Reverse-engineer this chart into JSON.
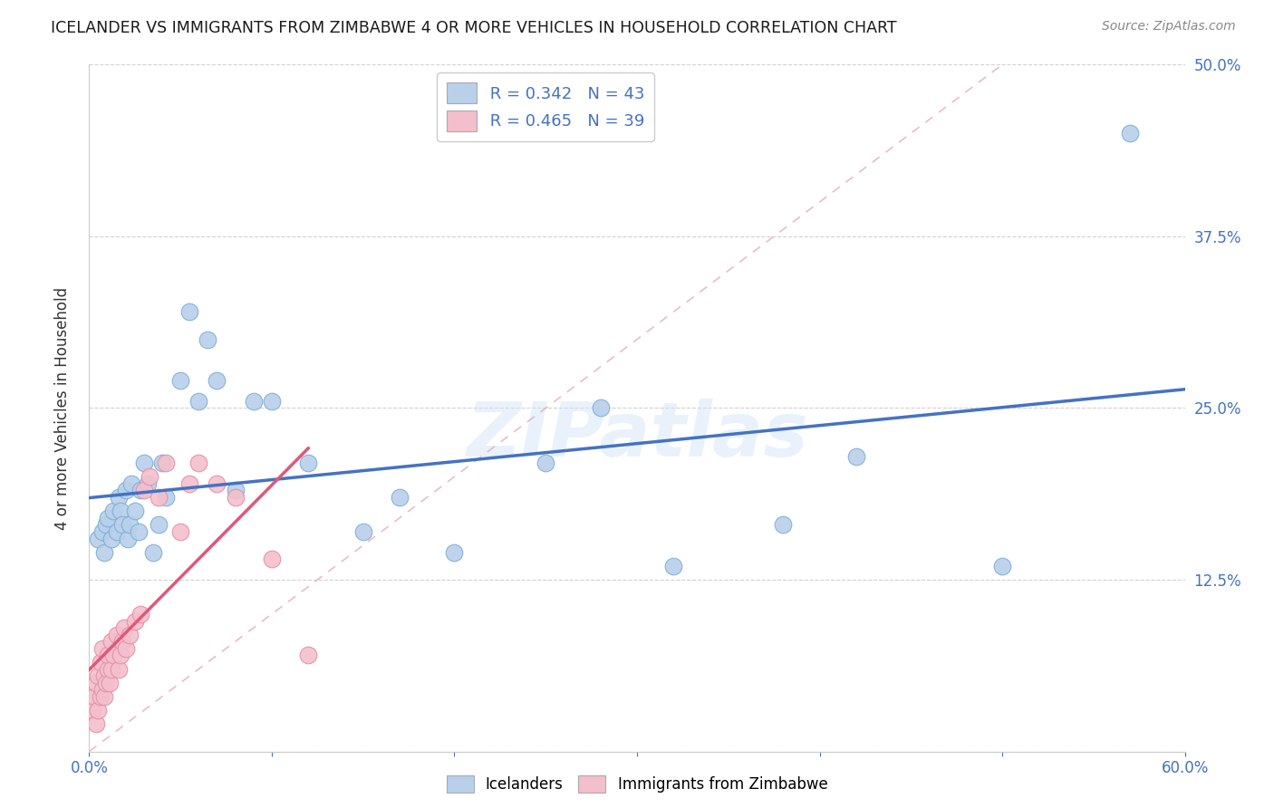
{
  "title": "ICELANDER VS IMMIGRANTS FROM ZIMBABWE 4 OR MORE VEHICLES IN HOUSEHOLD CORRELATION CHART",
  "source": "Source: ZipAtlas.com",
  "ylabel": "4 or more Vehicles in Household",
  "legend_label_blue": "Icelanders",
  "legend_label_pink": "Immigrants from Zimbabwe",
  "R_blue": 0.342,
  "N_blue": 43,
  "R_pink": 0.465,
  "N_pink": 39,
  "xlim": [
    0.0,
    0.6
  ],
  "ylim": [
    0.0,
    0.5
  ],
  "xticks": [
    0.0,
    0.1,
    0.2,
    0.3,
    0.4,
    0.5,
    0.6
  ],
  "xticklabels": [
    "0.0%",
    "",
    "",
    "",
    "",
    "",
    "60.0%"
  ],
  "yticks": [
    0.0,
    0.125,
    0.25,
    0.375,
    0.5
  ],
  "yticklabels_right": [
    "",
    "12.5%",
    "25.0%",
    "37.5%",
    "50.0%"
  ],
  "color_blue": "#b8d0ea",
  "color_blue_edge": "#7bafd4",
  "color_blue_line": "#4472c4",
  "color_pink": "#f4bfcc",
  "color_pink_edge": "#e090a8",
  "color_pink_line": "#e05878",
  "watermark_text": "ZIPatlas",
  "blue_x": [
    0.005,
    0.007,
    0.008,
    0.009,
    0.01,
    0.012,
    0.013,
    0.015,
    0.016,
    0.017,
    0.018,
    0.02,
    0.021,
    0.022,
    0.023,
    0.025,
    0.027,
    0.028,
    0.03,
    0.032,
    0.035,
    0.038,
    0.04,
    0.042,
    0.05,
    0.055,
    0.06,
    0.065,
    0.07,
    0.08,
    0.09,
    0.1,
    0.12,
    0.15,
    0.17,
    0.2,
    0.25,
    0.28,
    0.32,
    0.38,
    0.42,
    0.5,
    0.57
  ],
  "blue_y": [
    0.155,
    0.16,
    0.145,
    0.165,
    0.17,
    0.155,
    0.175,
    0.16,
    0.185,
    0.175,
    0.165,
    0.19,
    0.155,
    0.165,
    0.195,
    0.175,
    0.16,
    0.19,
    0.21,
    0.195,
    0.145,
    0.165,
    0.21,
    0.185,
    0.27,
    0.32,
    0.255,
    0.3,
    0.27,
    0.19,
    0.255,
    0.255,
    0.21,
    0.16,
    0.185,
    0.145,
    0.21,
    0.25,
    0.135,
    0.165,
    0.215,
    0.135,
    0.45
  ],
  "pink_x": [
    0.002,
    0.003,
    0.004,
    0.004,
    0.005,
    0.005,
    0.006,
    0.006,
    0.007,
    0.007,
    0.008,
    0.008,
    0.009,
    0.01,
    0.01,
    0.011,
    0.012,
    0.012,
    0.013,
    0.015,
    0.016,
    0.017,
    0.018,
    0.019,
    0.02,
    0.022,
    0.025,
    0.028,
    0.03,
    0.033,
    0.038,
    0.042,
    0.05,
    0.055,
    0.06,
    0.07,
    0.08,
    0.1,
    0.12
  ],
  "pink_y": [
    0.03,
    0.04,
    0.02,
    0.05,
    0.03,
    0.055,
    0.04,
    0.065,
    0.045,
    0.075,
    0.04,
    0.055,
    0.05,
    0.06,
    0.07,
    0.05,
    0.06,
    0.08,
    0.07,
    0.085,
    0.06,
    0.07,
    0.08,
    0.09,
    0.075,
    0.085,
    0.095,
    0.1,
    0.19,
    0.2,
    0.185,
    0.21,
    0.16,
    0.195,
    0.21,
    0.195,
    0.185,
    0.14,
    0.07
  ]
}
